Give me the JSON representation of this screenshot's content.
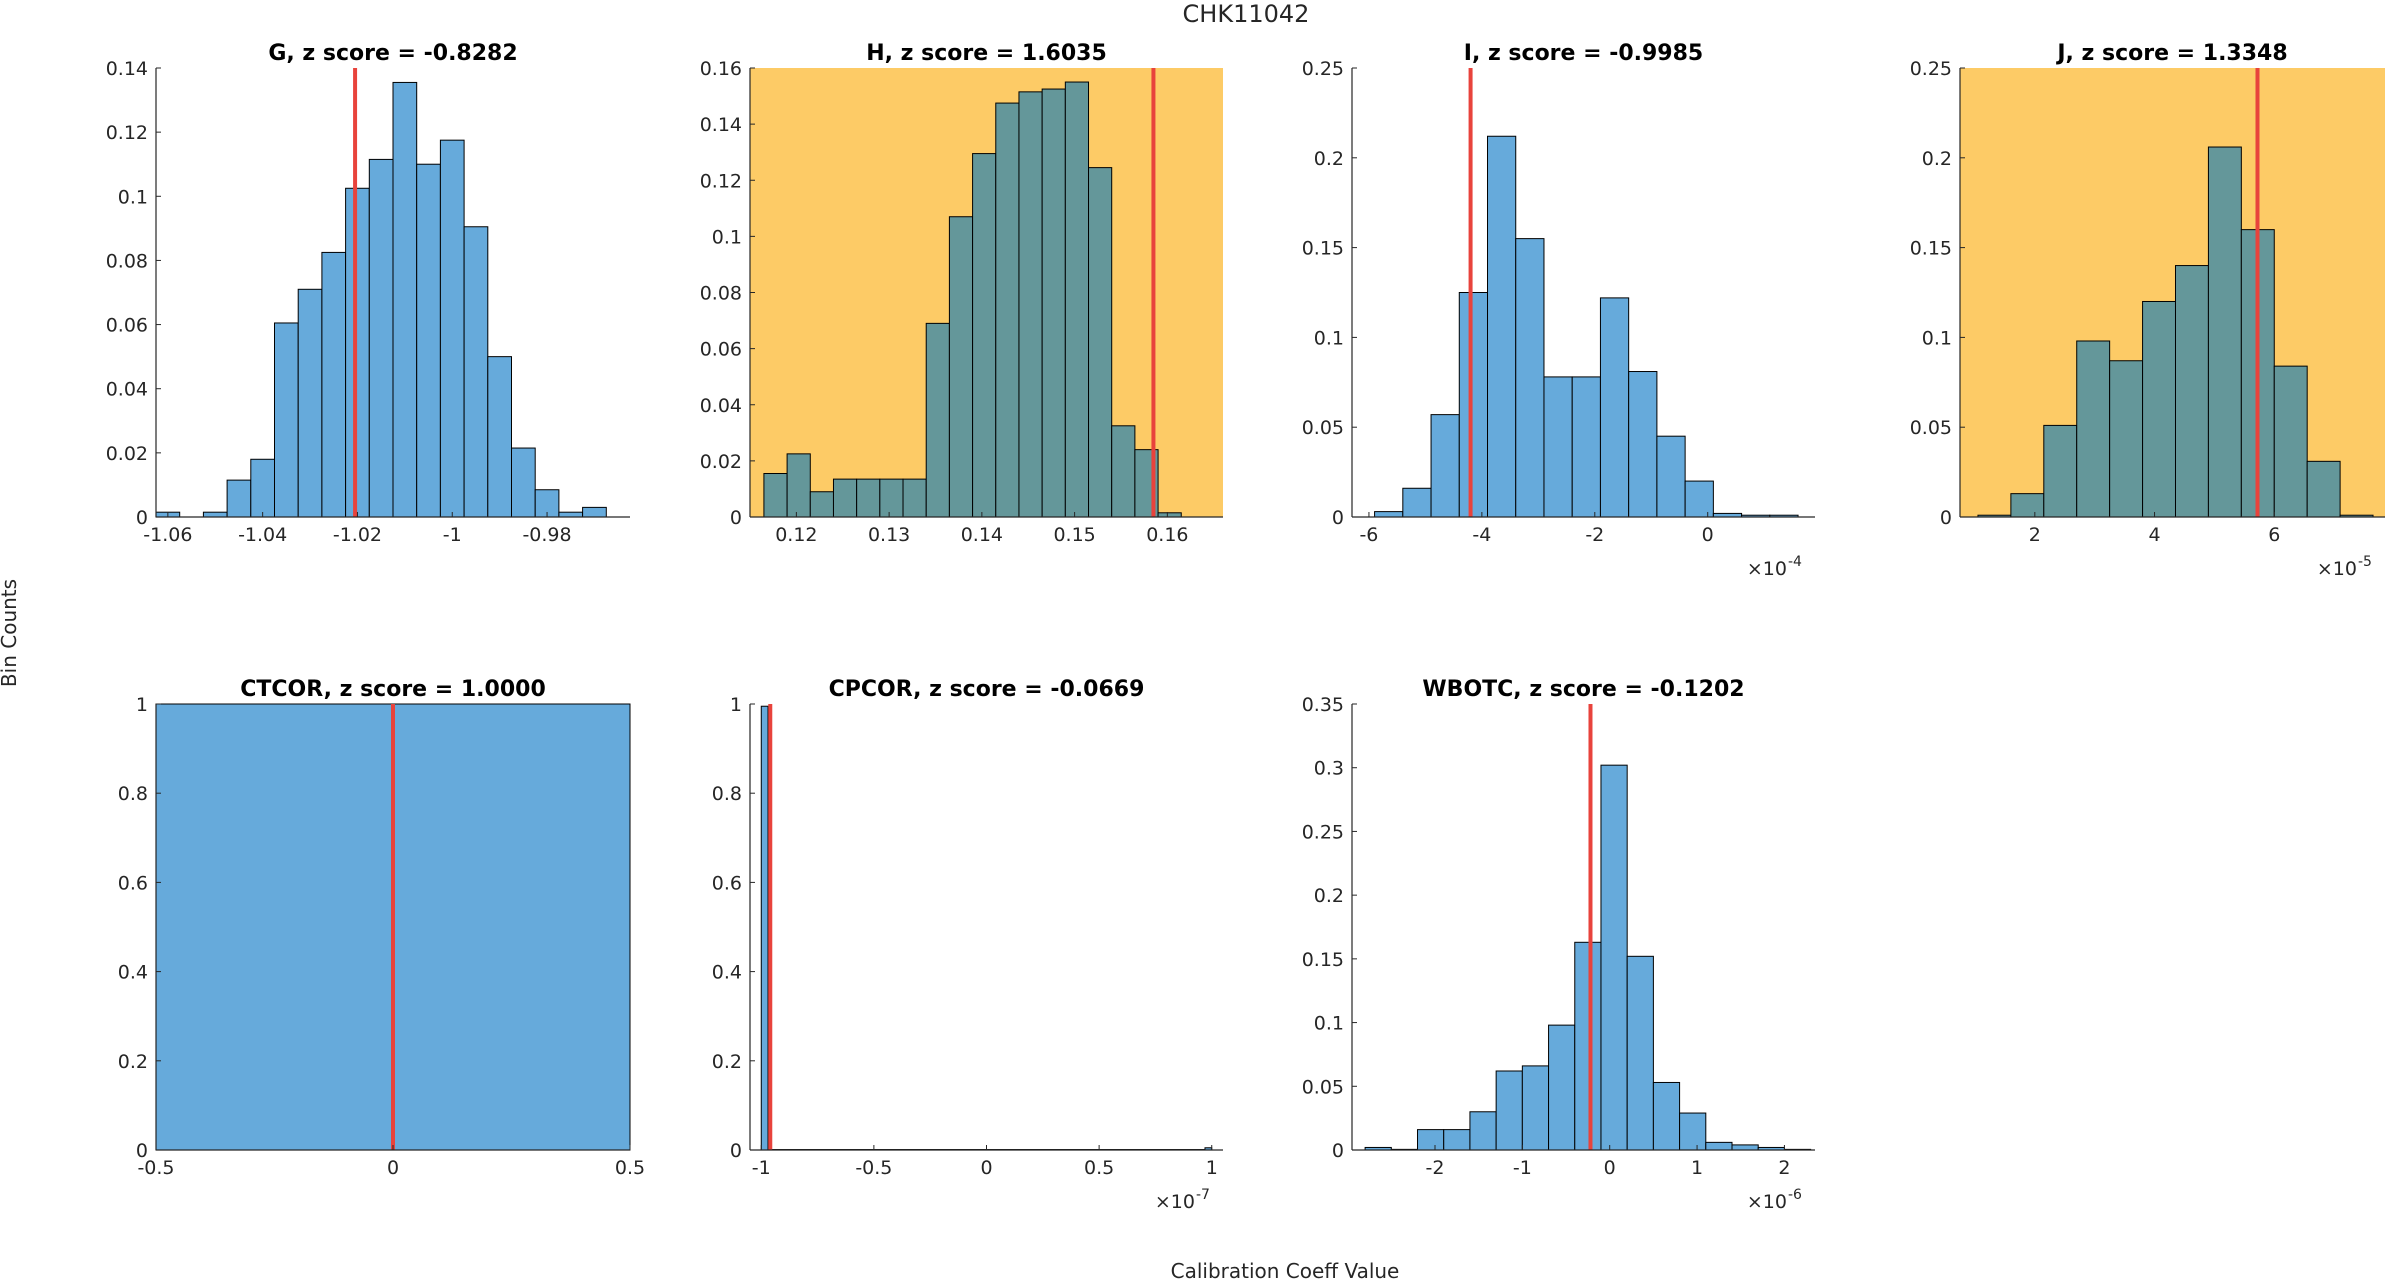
{
  "figure": {
    "title": "CHK11042",
    "xlabel": "Calibration Coeff Value",
    "ylabel": "Bin Counts",
    "bar_color": "#66AADB",
    "highlight_bar_color": "#64979A",
    "highlight_bg": "#FDCB66",
    "marker_color": "#E8433C"
  },
  "chart_data": [
    {
      "type": "bar",
      "title": "G, z score = -0.8282",
      "highlight": false,
      "bins": [
        [
          -1.0625,
          -1.0575,
          0.0015
        ],
        [
          -1.0525,
          -1.0475,
          0.0015
        ],
        [
          -1.0475,
          -1.0425,
          0.0115
        ],
        [
          -1.0425,
          -1.0375,
          0.018
        ],
        [
          -1.0375,
          -1.0325,
          0.0605
        ],
        [
          -1.0325,
          -1.0275,
          0.071
        ],
        [
          -1.0275,
          -1.0225,
          0.0825
        ],
        [
          -1.0225,
          -1.0175,
          0.1025
        ],
        [
          -1.0175,
          -1.0125,
          0.1115
        ],
        [
          -1.0125,
          -1.0075,
          0.1355
        ],
        [
          -1.0075,
          -1.0025,
          0.11
        ],
        [
          -1.0025,
          -0.9975,
          0.1175
        ],
        [
          -0.9975,
          -0.9925,
          0.0905
        ],
        [
          -0.9925,
          -0.9875,
          0.05
        ],
        [
          -0.9875,
          -0.9825,
          0.0215
        ],
        [
          -0.9825,
          -0.9775,
          0.0085
        ],
        [
          -0.9775,
          -0.9725,
          0.0015
        ],
        [
          -0.9725,
          -0.9675,
          0.003
        ]
      ],
      "marker": -1.0205,
      "xlim": [
        -1.0625,
        -0.9625
      ],
      "ylim": [
        0,
        0.14
      ],
      "xticks": [
        -1.06,
        -1.04,
        -1.02,
        -1,
        -0.98
      ],
      "xtick_labels": [
        "-1.06",
        "-1.04",
        "-1.02",
        "-1",
        "-0.98"
      ],
      "yticks": [
        0,
        0.02,
        0.04,
        0.06,
        0.08,
        0.1,
        0.12,
        0.14
      ],
      "ytick_labels": [
        "0",
        "0.02",
        "0.04",
        "0.06",
        "0.08",
        "0.1",
        "0.12",
        "0.14"
      ],
      "exponent": ""
    },
    {
      "type": "bar",
      "title": "H, z score = 1.6035",
      "highlight": true,
      "bins": [
        [
          0.1165,
          0.119,
          0.0155
        ],
        [
          0.119,
          0.1215,
          0.0225
        ],
        [
          0.1215,
          0.124,
          0.009
        ],
        [
          0.124,
          0.1265,
          0.0135
        ],
        [
          0.1265,
          0.129,
          0.0135
        ],
        [
          0.129,
          0.1315,
          0.0135
        ],
        [
          0.1315,
          0.134,
          0.0135
        ],
        [
          0.134,
          0.1365,
          0.069
        ],
        [
          0.1365,
          0.139,
          0.107
        ],
        [
          0.139,
          0.1415,
          0.1295
        ],
        [
          0.1415,
          0.144,
          0.1475
        ],
        [
          0.144,
          0.1465,
          0.1515
        ],
        [
          0.1465,
          0.149,
          0.1525
        ],
        [
          0.149,
          0.1515,
          0.155
        ],
        [
          0.1515,
          0.154,
          0.1245
        ],
        [
          0.154,
          0.1565,
          0.0325
        ],
        [
          0.1565,
          0.159,
          0.024
        ],
        [
          0.159,
          0.1615,
          0.0015
        ]
      ],
      "marker": 0.1585,
      "xlim": [
        0.115,
        0.166
      ],
      "ylim": [
        0,
        0.16
      ],
      "xticks": [
        0.12,
        0.13,
        0.14,
        0.15,
        0.16
      ],
      "xtick_labels": [
        "0.12",
        "0.13",
        "0.14",
        "0.15",
        "0.16"
      ],
      "yticks": [
        0,
        0.02,
        0.04,
        0.06,
        0.08,
        0.1,
        0.12,
        0.14,
        0.16
      ],
      "ytick_labels": [
        "0",
        "0.02",
        "0.04",
        "0.06",
        "0.08",
        "0.1",
        "0.12",
        "0.14",
        "0.16"
      ],
      "exponent": ""
    },
    {
      "type": "bar",
      "title": "I, z score = -0.9985",
      "highlight": false,
      "bins": [
        [
          -5.9,
          -5.4,
          0.003
        ],
        [
          -5.4,
          -4.9,
          0.016
        ],
        [
          -4.9,
          -4.4,
          0.057
        ],
        [
          -4.4,
          -3.9,
          0.125
        ],
        [
          -3.9,
          -3.4,
          0.212
        ],
        [
          -3.4,
          -2.9,
          0.155
        ],
        [
          -2.9,
          -2.4,
          0.078
        ],
        [
          -2.4,
          -1.9,
          0.078
        ],
        [
          -1.9,
          -1.4,
          0.122
        ],
        [
          -1.4,
          -0.9,
          0.081
        ],
        [
          -0.9,
          -0.4,
          0.045
        ],
        [
          -0.4,
          0.1,
          0.02
        ],
        [
          0.1,
          0.6,
          0.002
        ],
        [
          0.6,
          1.1,
          0.001
        ],
        [
          1.1,
          1.6,
          0.001
        ]
      ],
      "marker": -4.2,
      "xlim": [
        -6.3,
        1.9
      ],
      "ylim": [
        0,
        0.25
      ],
      "xticks": [
        -6,
        -4,
        -2,
        0
      ],
      "xtick_labels": [
        "-6",
        "-4",
        "-2",
        "0"
      ],
      "yticks": [
        0,
        0.05,
        0.1,
        0.15,
        0.2,
        0.25
      ],
      "ytick_labels": [
        "0",
        "0.05",
        "0.1",
        "0.15",
        "0.2",
        "0.25"
      ],
      "exponent": "-4"
    },
    {
      "type": "bar",
      "title": "J, z score = 1.3348",
      "highlight": true,
      "bins": [
        [
          1.05,
          1.6,
          0.001
        ],
        [
          1.6,
          2.15,
          0.013
        ],
        [
          2.15,
          2.7,
          0.051
        ],
        [
          2.7,
          3.25,
          0.098
        ],
        [
          3.25,
          3.8,
          0.087
        ],
        [
          3.8,
          4.35,
          0.12
        ],
        [
          4.35,
          4.9,
          0.14
        ],
        [
          4.9,
          5.45,
          0.206
        ],
        [
          5.45,
          6.0,
          0.16
        ],
        [
          6.0,
          6.55,
          0.084
        ],
        [
          6.55,
          7.1,
          0.031
        ],
        [
          7.1,
          7.65,
          0.001
        ]
      ],
      "marker": 5.72,
      "xlim": [
        0.75,
        7.85
      ],
      "ylim": [
        0,
        0.25
      ],
      "xticks": [
        2,
        4,
        6
      ],
      "xtick_labels": [
        "2",
        "4",
        "6"
      ],
      "yticks": [
        0,
        0.05,
        0.1,
        0.15,
        0.2,
        0.25
      ],
      "ytick_labels": [
        "0",
        "0.05",
        "0.1",
        "0.15",
        "0.2",
        "0.25"
      ],
      "exponent": "-5"
    },
    {
      "type": "bar",
      "title": "CTCOR, z score = 1.0000",
      "highlight": false,
      "bins": [
        [
          -0.5,
          0.5,
          1
        ]
      ],
      "marker": 0,
      "xlim": [
        -0.5,
        0.5
      ],
      "ylim": [
        0,
        1
      ],
      "xticks": [
        -0.5,
        0,
        0.5
      ],
      "xtick_labels": [
        "-0.5",
        "0",
        "0.5"
      ],
      "yticks": [
        0,
        0.2,
        0.4,
        0.6,
        0.8,
        1
      ],
      "ytick_labels": [
        "0",
        "0.2",
        "0.4",
        "0.6",
        "0.8",
        "1"
      ],
      "exponent": ""
    },
    {
      "type": "bar",
      "title": "CPCOR, z score = -0.0669",
      "highlight": false,
      "bins": [
        [
          -1.0,
          -0.97,
          0.995
        ],
        [
          -0.97,
          0.97,
          0.001
        ],
        [
          0.97,
          1.0,
          0.005
        ]
      ],
      "marker": -0.96,
      "xlim": [
        -1.05,
        1.05
      ],
      "ylim": [
        0,
        1
      ],
      "xticks": [
        -1,
        -0.5,
        0,
        0.5,
        1
      ],
      "xtick_labels": [
        "-1",
        "-0.5",
        "0",
        "0.5",
        "1"
      ],
      "yticks": [
        0,
        0.2,
        0.4,
        0.6,
        0.8,
        1
      ],
      "ytick_labels": [
        "0",
        "0.2",
        "0.4",
        "0.6",
        "0.8",
        "1"
      ],
      "exponent": "-7"
    },
    {
      "type": "bar",
      "title": "WBOTC, z score = -0.1202",
      "highlight": false,
      "bins": [
        [
          -2.8,
          -2.5,
          0.002
        ],
        [
          -2.5,
          -2.2,
          0.0005
        ],
        [
          -2.2,
          -1.9,
          0.016
        ],
        [
          -1.9,
          -1.6,
          0.016
        ],
        [
          -1.6,
          -1.3,
          0.03
        ],
        [
          -1.3,
          -1.0,
          0.062
        ],
        [
          -1.0,
          -0.7,
          0.066
        ],
        [
          -0.7,
          -0.4,
          0.098
        ],
        [
          -0.4,
          -0.1,
          0.163
        ],
        [
          -0.1,
          0.2,
          0.302
        ],
        [
          0.2,
          0.5,
          0.152
        ],
        [
          0.5,
          0.8,
          0.053
        ],
        [
          0.8,
          1.1,
          0.029
        ],
        [
          1.1,
          1.4,
          0.006
        ],
        [
          1.4,
          1.7,
          0.004
        ],
        [
          1.7,
          2.0,
          0.002
        ],
        [
          2.0,
          2.3,
          0.0005
        ]
      ],
      "marker": -0.22,
      "xlim": [
        -2.95,
        2.35
      ],
      "ylim": [
        0,
        0.35
      ],
      "xticks": [
        -2,
        -1,
        0,
        1,
        2
      ],
      "xtick_labels": [
        "-2",
        "-1",
        "0",
        "1",
        "2"
      ],
      "yticks": [
        0,
        0.05,
        0.1,
        0.15,
        0.2,
        0.25,
        0.3,
        0.35
      ],
      "ytick_labels": [
        "0",
        "0.05",
        "0.1",
        "0.15",
        "0.2",
        "0.25",
        "0.3",
        "0.35"
      ],
      "exponent": "-6"
    }
  ]
}
